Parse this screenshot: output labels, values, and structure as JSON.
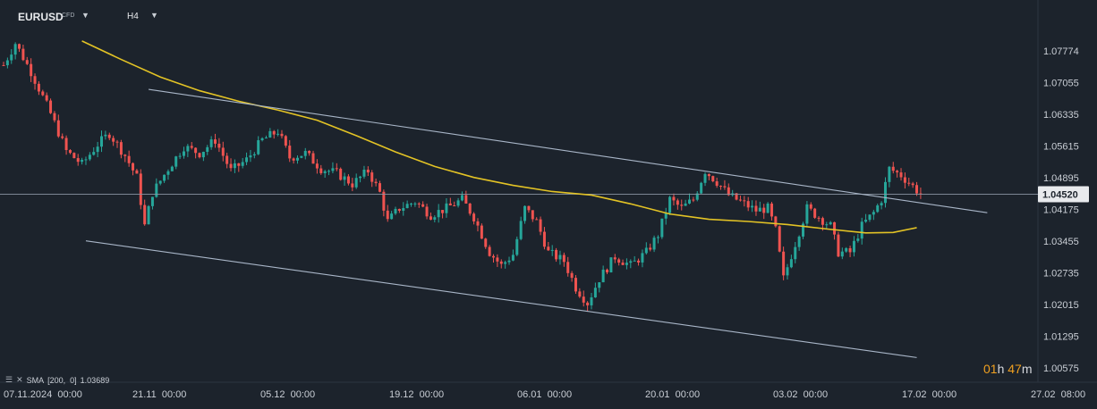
{
  "header": {
    "symbol": "EURUSD",
    "instrument_type": "CFD",
    "timeframe": "H4"
  },
  "indicator": {
    "label": "SMA",
    "params": "[200,  0]",
    "value": "1.03689"
  },
  "timer": {
    "hours": "01",
    "hours_unit": "h",
    "minutes": "47",
    "minutes_unit": "m"
  },
  "colors": {
    "background": "#1c232c",
    "bull": "#26a69a",
    "bear": "#ef5350",
    "sma": "#e3c325",
    "channel": "#a9b6c8",
    "price_line": "#8a94a3"
  },
  "chart_data": {
    "type": "candlestick",
    "symbol": "EURUSD",
    "timeframe": "H4",
    "y_ticks": [
      "1.07774",
      "1.07055",
      "1.06335",
      "1.05615",
      "1.04895",
      "1.04175",
      "1.03455",
      "1.02735",
      "1.02015",
      "1.01295",
      "1.00575"
    ],
    "ylim": [
      1.00575,
      1.08134
    ],
    "x_ticks": [
      "07.11.2024  00:00",
      "21.11  00:00",
      "05.12  00:00",
      "19.12  00:00",
      "06.01  00:00",
      "20.01  00:00",
      "03.02  00:00",
      "17.02  00:00",
      "27.02  08:00"
    ],
    "current_price": "1.04520",
    "x_axis_max": 226,
    "close_path": [
      [
        0,
        1.0745
      ],
      [
        3,
        1.0795
      ],
      [
        7,
        1.073
      ],
      [
        12,
        1.0635
      ],
      [
        16,
        1.055
      ],
      [
        20,
        1.052
      ],
      [
        24,
        1.0565
      ],
      [
        27,
        1.059
      ],
      [
        31,
        1.054
      ],
      [
        34,
        1.049
      ],
      [
        36,
        1.038
      ],
      [
        38,
        1.0455
      ],
      [
        42,
        1.051
      ],
      [
        46,
        1.056
      ],
      [
        50,
        1.0545
      ],
      [
        54,
        1.0575
      ],
      [
        58,
        1.0505
      ],
      [
        62,
        1.053
      ],
      [
        66,
        1.0575
      ],
      [
        70,
        1.0595
      ],
      [
        73,
        1.0535
      ],
      [
        77,
        1.0545
      ],
      [
        81,
        1.051
      ],
      [
        85,
        1.05
      ],
      [
        89,
        1.0475
      ],
      [
        93,
        1.0505
      ],
      [
        96,
        1.0455
      ],
      [
        98,
        1.039
      ],
      [
        101,
        1.042
      ],
      [
        105,
        1.0435
      ],
      [
        109,
        1.0405
      ],
      [
        113,
        1.042
      ],
      [
        117,
        1.044
      ],
      [
        120,
        1.04
      ],
      [
        124,
        1.032
      ],
      [
        127,
        1.029
      ],
      [
        130,
        1.0315
      ],
      [
        133,
        1.042
      ],
      [
        136,
        1.039
      ],
      [
        139,
        1.032
      ],
      [
        143,
        1.03
      ],
      [
        146,
        1.024
      ],
      [
        149,
        1.0205
      ],
      [
        152,
        1.026
      ],
      [
        156,
        1.031
      ],
      [
        160,
        1.029
      ],
      [
        164,
        1.032
      ],
      [
        167,
        1.036
      ],
      [
        170,
        1.044
      ],
      [
        173,
        1.042
      ],
      [
        176,
        1.044
      ],
      [
        179,
        1.0505
      ],
      [
        182,
        1.048
      ],
      [
        185,
        1.045
      ],
      [
        189,
        1.043
      ],
      [
        192,
        1.0415
      ],
      [
        195,
        1.042
      ],
      [
        197,
        1.037
      ],
      [
        199,
        1.026
      ],
      [
        202,
        1.034
      ],
      [
        205,
        1.042
      ],
      [
        208,
        1.04
      ],
      [
        211,
        1.038
      ],
      [
        213,
        1.032
      ],
      [
        216,
        1.032
      ],
      [
        219,
        1.038
      ],
      [
        222,
        1.041
      ],
      [
        224,
        1.044
      ],
      [
        226,
        1.051
      ],
      [
        229,
        1.0495
      ],
      [
        232,
        1.047
      ],
      [
        234,
        1.0452
      ]
    ],
    "series": [
      {
        "name": "SMA [200, 0]",
        "type": "line",
        "points": [
          [
            20,
            1.08
          ],
          [
            30,
            1.0758
          ],
          [
            40,
            1.0718
          ],
          [
            50,
            1.0687
          ],
          [
            60,
            1.0663
          ],
          [
            70,
            1.0643
          ],
          [
            80,
            1.062
          ],
          [
            90,
            1.0585
          ],
          [
            100,
            1.0548
          ],
          [
            110,
            1.0515
          ],
          [
            120,
            1.049
          ],
          [
            130,
            1.0472
          ],
          [
            140,
            1.0458
          ],
          [
            150,
            1.045
          ],
          [
            160,
            1.043
          ],
          [
            170,
            1.0407
          ],
          [
            180,
            1.0395
          ],
          [
            190,
            1.039
          ],
          [
            200,
            1.0383
          ],
          [
            210,
            1.0373
          ],
          [
            220,
            1.0364
          ],
          [
            227,
            1.0365
          ],
          [
            233,
            1.0376
          ]
        ]
      },
      {
        "name": "upper channel",
        "type": "trendline",
        "points": [
          [
            37,
            1.069
          ],
          [
            251,
            1.041
          ]
        ]
      },
      {
        "name": "lower channel",
        "type": "trendline",
        "points": [
          [
            21,
            1.0346
          ],
          [
            233,
            1.0081
          ]
        ]
      }
    ]
  }
}
